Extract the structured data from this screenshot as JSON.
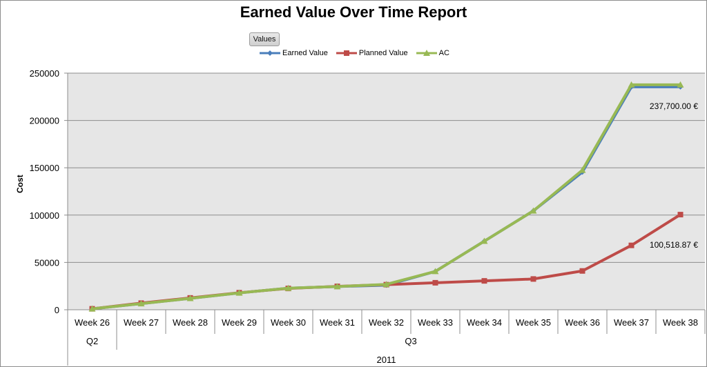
{
  "chart_data": {
    "type": "line",
    "title": "Earned Value Over Time Report",
    "ylabel": "Cost",
    "filter_button": "Values",
    "ylim": [
      0,
      250000
    ],
    "yticks": [
      0,
      50000,
      100000,
      150000,
      200000,
      250000
    ],
    "grid": true,
    "legend_position": "top",
    "categories": [
      "Week 26",
      "Week 27",
      "Week 28",
      "Week 29",
      "Week 30",
      "Week 31",
      "Week 32",
      "Week 33",
      "Week 34",
      "Week 35",
      "Week 36",
      "Week 37",
      "Week 38"
    ],
    "quarters": [
      {
        "label": "Q2",
        "from": 0,
        "to": 0
      },
      {
        "label": "Q3",
        "from": 1,
        "to": 12
      }
    ],
    "year": "2011",
    "series": [
      {
        "name": "Earned Value",
        "color": "#4a7ebb",
        "marker": "diamond",
        "values": [
          1000,
          6500,
          12000,
          17800,
          22800,
          24500,
          26000,
          40500,
          72500,
          104500,
          145500,
          235500,
          235500
        ]
      },
      {
        "name": "Planned Value",
        "color": "#be4b48",
        "marker": "square",
        "values": [
          1000,
          7000,
          12500,
          18000,
          22500,
          24700,
          26500,
          28500,
          30500,
          32500,
          41000,
          68000,
          100518.87
        ]
      },
      {
        "name": "AC",
        "color": "#98b954",
        "marker": "triangle",
        "values": [
          1000,
          6500,
          12000,
          17800,
          22800,
          24500,
          26800,
          40500,
          72500,
          104500,
          147500,
          237700,
          237700
        ]
      }
    ],
    "annotations": [
      {
        "series": "AC",
        "index": 12,
        "text": "237,700.00 €"
      },
      {
        "series": "Planned Value",
        "index": 12,
        "text": "100,518.87 €"
      }
    ]
  }
}
